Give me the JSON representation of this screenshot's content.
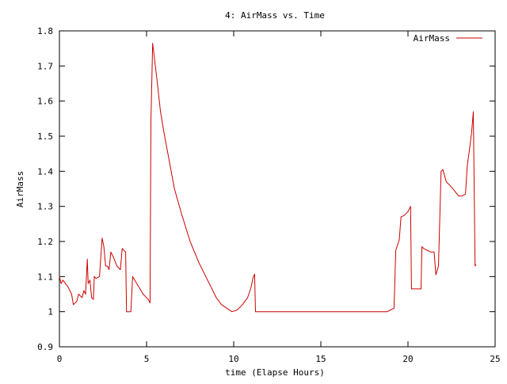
{
  "chart_data": {
    "type": "line",
    "title": "4: AirMass vs. Time",
    "xlabel": "time (Elapse Hours)",
    "ylabel": "AirMass",
    "xlim": [
      0,
      25
    ],
    "ylim": [
      0.9,
      1.8
    ],
    "xticks": [
      0,
      5,
      10,
      15,
      20,
      25
    ],
    "xtick_labels": [
      "0",
      "5",
      "10",
      "15",
      "20",
      "25"
    ],
    "yticks": [
      0.9,
      1.0,
      1.1,
      1.2,
      1.3,
      1.4,
      1.5,
      1.6,
      1.7,
      1.8
    ],
    "ytick_labels": [
      "0.9",
      "1",
      "1.1",
      "1.2",
      "1.3",
      "1.4",
      "1.5",
      "1.6",
      "1.7",
      "1.8"
    ],
    "grid": false,
    "legend_position": "top-right",
    "series": [
      {
        "name": "AirMass",
        "color": "#cc0000",
        "points": [
          [
            0.0,
            1.1
          ],
          [
            0.1,
            1.08
          ],
          [
            0.2,
            1.09
          ],
          [
            0.5,
            1.07
          ],
          [
            0.7,
            1.05
          ],
          [
            0.8,
            1.02
          ],
          [
            1.0,
            1.03
          ],
          [
            1.1,
            1.05
          ],
          [
            1.3,
            1.04
          ],
          [
            1.4,
            1.06
          ],
          [
            1.5,
            1.05
          ],
          [
            1.6,
            1.15
          ],
          [
            1.65,
            1.08
          ],
          [
            1.75,
            1.09
          ],
          [
            1.85,
            1.04
          ],
          [
            1.95,
            1.035
          ],
          [
            2.0,
            1.1
          ],
          [
            2.1,
            1.095
          ],
          [
            2.3,
            1.1
          ],
          [
            2.45,
            1.21
          ],
          [
            2.55,
            1.185
          ],
          [
            2.65,
            1.13
          ],
          [
            2.75,
            1.13
          ],
          [
            2.85,
            1.12
          ],
          [
            2.95,
            1.17
          ],
          [
            3.1,
            1.155
          ],
          [
            3.3,
            1.13
          ],
          [
            3.5,
            1.12
          ],
          [
            3.6,
            1.18
          ],
          [
            3.8,
            1.17
          ],
          [
            3.85,
            1.0
          ],
          [
            4.0,
            1.0
          ],
          [
            4.1,
            1.0
          ],
          [
            4.2,
            1.1
          ],
          [
            4.5,
            1.075
          ],
          [
            4.8,
            1.05
          ],
          [
            5.1,
            1.035
          ],
          [
            5.2,
            1.025
          ],
          [
            5.25,
            1.54
          ],
          [
            5.35,
            1.765
          ],
          [
            5.6,
            1.66
          ],
          [
            5.8,
            1.57
          ],
          [
            6.0,
            1.51
          ],
          [
            6.3,
            1.43
          ],
          [
            6.6,
            1.35
          ],
          [
            7.0,
            1.28
          ],
          [
            7.5,
            1.2
          ],
          [
            8.0,
            1.14
          ],
          [
            8.5,
            1.09
          ],
          [
            9.0,
            1.04
          ],
          [
            9.3,
            1.02
          ],
          [
            9.6,
            1.01
          ],
          [
            9.9,
            1.0
          ],
          [
            10.2,
            1.005
          ],
          [
            10.5,
            1.02
          ],
          [
            10.8,
            1.04
          ],
          [
            11.0,
            1.07
          ],
          [
            11.1,
            1.095
          ],
          [
            11.2,
            1.107
          ],
          [
            11.25,
            1.0
          ],
          [
            13.0,
            1.0
          ],
          [
            15.0,
            1.0
          ],
          [
            17.0,
            1.0
          ],
          [
            18.8,
            1.0
          ],
          [
            19.0,
            1.005
          ],
          [
            19.2,
            1.01
          ],
          [
            19.3,
            1.175
          ],
          [
            19.5,
            1.205
          ],
          [
            19.6,
            1.27
          ],
          [
            19.8,
            1.275
          ],
          [
            20.0,
            1.285
          ],
          [
            20.15,
            1.3
          ],
          [
            20.2,
            1.065
          ],
          [
            20.5,
            1.065
          ],
          [
            20.75,
            1.065
          ],
          [
            20.8,
            1.185
          ],
          [
            20.9,
            1.18
          ],
          [
            21.1,
            1.175
          ],
          [
            21.3,
            1.17
          ],
          [
            21.5,
            1.17
          ],
          [
            21.6,
            1.105
          ],
          [
            21.75,
            1.13
          ],
          [
            21.9,
            1.4
          ],
          [
            22.0,
            1.405
          ],
          [
            22.2,
            1.37
          ],
          [
            22.5,
            1.355
          ],
          [
            22.9,
            1.33
          ],
          [
            23.1,
            1.33
          ],
          [
            23.3,
            1.335
          ],
          [
            23.4,
            1.415
          ],
          [
            23.55,
            1.47
          ],
          [
            23.65,
            1.51
          ],
          [
            23.75,
            1.57
          ],
          [
            23.85,
            1.13
          ],
          [
            23.9,
            1.135
          ]
        ]
      }
    ]
  }
}
